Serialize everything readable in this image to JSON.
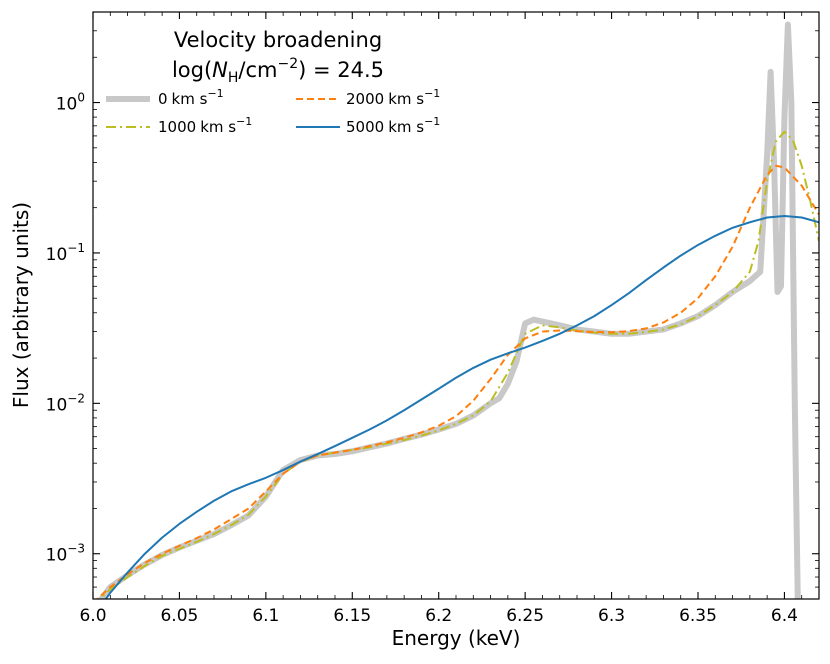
{
  "chart_data": {
    "type": "line",
    "title": "",
    "xlabel": "Energy (keV)",
    "ylabel": "Flux (arbitrary units)",
    "xlim": [
      6.0,
      6.42
    ],
    "ylim": [
      0.0005,
      4.0
    ],
    "yscale": "log",
    "x_ticks": [
      6.0,
      6.05,
      6.1,
      6.15,
      6.2,
      6.25,
      6.3,
      6.35,
      6.4
    ],
    "x_tick_labels": [
      "6.0",
      "6.05",
      "6.1",
      "6.15",
      "6.2",
      "6.25",
      "6.3",
      "6.35",
      "6.4"
    ],
    "y_ticks": [
      {
        "value": 0.001,
        "base": "10",
        "exp": "−3"
      },
      {
        "value": 0.01,
        "base": "10",
        "exp": "−2"
      },
      {
        "value": 0.1,
        "base": "10",
        "exp": "−1"
      },
      {
        "value": 1.0,
        "base": "10",
        "exp": "0"
      }
    ],
    "legend": {
      "title_line1": "Velocity broadening",
      "title_line2_prefix": "log(",
      "title_line2_N": "N",
      "title_line2_sub": "H",
      "title_line2_mid": "/cm",
      "title_line2_sup": "−2",
      "title_line2_suffix": ") = 24.5",
      "unit_text": "km s",
      "unit_sup": "−1",
      "position": "top-left",
      "columns": 2
    },
    "series": [
      {
        "name": "0 km s−1",
        "label_number": "0",
        "color": "#c8c8c8",
        "linestyle": "solid",
        "width": 6,
        "x": [
          6.0,
          6.01,
          6.02,
          6.03,
          6.04,
          6.05,
          6.06,
          6.07,
          6.08,
          6.09,
          6.1,
          6.11,
          6.12,
          6.13,
          6.14,
          6.15,
          6.16,
          6.17,
          6.18,
          6.19,
          6.2,
          6.21,
          6.22,
          6.23,
          6.235,
          6.24,
          6.245,
          6.25,
          6.255,
          6.26,
          6.27,
          6.28,
          6.29,
          6.3,
          6.31,
          6.32,
          6.33,
          6.34,
          6.35,
          6.36,
          6.37,
          6.38,
          6.386,
          6.39,
          6.392,
          6.394,
          6.396,
          6.398,
          6.4,
          6.402,
          6.404,
          6.406,
          6.408
        ],
        "y": [
          0.00042,
          0.0006,
          0.00072,
          0.00085,
          0.00098,
          0.0011,
          0.00122,
          0.00135,
          0.00155,
          0.0018,
          0.0024,
          0.0036,
          0.0042,
          0.0045,
          0.0046,
          0.0048,
          0.0051,
          0.0054,
          0.0058,
          0.0062,
          0.0067,
          0.0073,
          0.0083,
          0.01,
          0.0108,
          0.0135,
          0.019,
          0.034,
          0.036,
          0.035,
          0.033,
          0.031,
          0.03,
          0.029,
          0.029,
          0.03,
          0.031,
          0.034,
          0.038,
          0.045,
          0.055,
          0.065,
          0.075,
          0.45,
          1.6,
          0.4,
          0.055,
          0.06,
          0.8,
          3.3,
          1.0,
          0.01,
          0.0003
        ]
      },
      {
        "name": "1000 km s−1",
        "label_number": "1000",
        "color": "#bcbd22",
        "linestyle": "dashdot",
        "width": 2,
        "x": [
          6.0,
          6.01,
          6.02,
          6.03,
          6.04,
          6.05,
          6.06,
          6.07,
          6.08,
          6.09,
          6.1,
          6.11,
          6.12,
          6.13,
          6.14,
          6.15,
          6.16,
          6.17,
          6.18,
          6.19,
          6.2,
          6.21,
          6.22,
          6.23,
          6.24,
          6.25,
          6.26,
          6.27,
          6.28,
          6.29,
          6.3,
          6.31,
          6.32,
          6.33,
          6.34,
          6.35,
          6.36,
          6.37,
          6.38,
          6.385,
          6.39,
          6.395,
          6.4,
          6.405,
          6.41,
          6.415,
          6.42
        ],
        "y": [
          0.00045,
          0.00058,
          0.0007,
          0.00083,
          0.00097,
          0.00108,
          0.0012,
          0.00135,
          0.00155,
          0.00182,
          0.0024,
          0.0034,
          0.0041,
          0.0045,
          0.0047,
          0.0049,
          0.0051,
          0.0054,
          0.0057,
          0.0061,
          0.0066,
          0.0073,
          0.0083,
          0.0103,
          0.016,
          0.029,
          0.033,
          0.032,
          0.0305,
          0.0295,
          0.029,
          0.029,
          0.0298,
          0.031,
          0.0335,
          0.038,
          0.045,
          0.055,
          0.075,
          0.12,
          0.3,
          0.55,
          0.64,
          0.56,
          0.38,
          0.22,
          0.12
        ]
      },
      {
        "name": "2000 km s−1",
        "label_number": "2000",
        "color": "#ff7f0e",
        "linestyle": "dashed",
        "width": 2,
        "x": [
          6.0,
          6.01,
          6.02,
          6.03,
          6.04,
          6.05,
          6.06,
          6.07,
          6.08,
          6.09,
          6.1,
          6.11,
          6.12,
          6.13,
          6.14,
          6.15,
          6.16,
          6.17,
          6.18,
          6.19,
          6.2,
          6.21,
          6.22,
          6.23,
          6.24,
          6.25,
          6.26,
          6.27,
          6.28,
          6.29,
          6.3,
          6.31,
          6.32,
          6.33,
          6.34,
          6.35,
          6.36,
          6.37,
          6.38,
          6.39,
          6.395,
          6.4,
          6.41,
          6.42
        ],
        "y": [
          0.00047,
          0.0006,
          0.00073,
          0.00087,
          0.001,
          0.00113,
          0.00127,
          0.00145,
          0.0017,
          0.002,
          0.0026,
          0.0034,
          0.0041,
          0.0045,
          0.0047,
          0.0049,
          0.0052,
          0.0055,
          0.0059,
          0.0064,
          0.0071,
          0.0082,
          0.0104,
          0.0145,
          0.021,
          0.027,
          0.03,
          0.0305,
          0.0302,
          0.0298,
          0.0297,
          0.0302,
          0.0315,
          0.0345,
          0.04,
          0.05,
          0.07,
          0.11,
          0.2,
          0.33,
          0.38,
          0.37,
          0.28,
          0.18
        ]
      },
      {
        "name": "5000 km s−1",
        "label_number": "5000",
        "color": "#1f77b4",
        "linestyle": "solid",
        "width": 2,
        "x": [
          6.0,
          6.01,
          6.02,
          6.03,
          6.04,
          6.05,
          6.06,
          6.07,
          6.08,
          6.09,
          6.1,
          6.11,
          6.12,
          6.13,
          6.14,
          6.15,
          6.16,
          6.17,
          6.18,
          6.19,
          6.2,
          6.21,
          6.22,
          6.23,
          6.24,
          6.25,
          6.26,
          6.27,
          6.28,
          6.29,
          6.3,
          6.31,
          6.32,
          6.33,
          6.34,
          6.35,
          6.36,
          6.37,
          6.38,
          6.39,
          6.4,
          6.41,
          6.42
        ],
        "y": [
          0.00038,
          0.00055,
          0.00075,
          0.001,
          0.00128,
          0.00158,
          0.0019,
          0.00225,
          0.0026,
          0.0029,
          0.0032,
          0.0036,
          0.0041,
          0.0046,
          0.0052,
          0.0059,
          0.0067,
          0.0077,
          0.009,
          0.0106,
          0.0125,
          0.0148,
          0.0172,
          0.0195,
          0.0215,
          0.0235,
          0.026,
          0.029,
          0.033,
          0.038,
          0.045,
          0.054,
          0.066,
          0.08,
          0.096,
          0.113,
          0.13,
          0.147,
          0.16,
          0.172,
          0.176,
          0.172,
          0.16
        ]
      }
    ]
  }
}
